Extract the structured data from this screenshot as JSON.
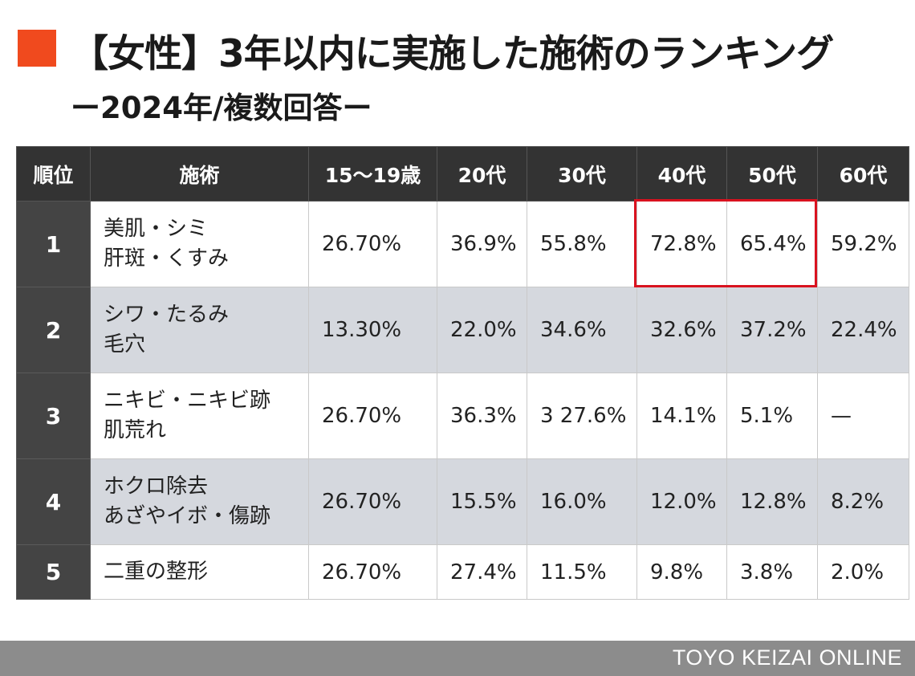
{
  "title": "【女性】3年以内に実施した施術のランキング",
  "subtitle": "ー2024年/複数回答ー",
  "chart_data": {
    "type": "table",
    "columns": [
      "順位",
      "施術",
      "15〜19歳",
      "20代",
      "30代",
      "40代",
      "50代",
      "60代"
    ],
    "rows": [
      {
        "rank": "1",
        "treatment": [
          "美肌・シミ",
          "肝斑・くすみ"
        ],
        "values": [
          "26.70%",
          "36.9%",
          "55.8%",
          "72.8%",
          "65.4%",
          "59.2%"
        ]
      },
      {
        "rank": "2",
        "treatment": [
          "シワ・たるみ",
          "毛穴"
        ],
        "values": [
          "13.30%",
          "22.0%",
          "34.6%",
          "32.6%",
          "37.2%",
          "22.4%"
        ]
      },
      {
        "rank": "3",
        "treatment": [
          "ニキビ・ニキビ跡",
          "肌荒れ"
        ],
        "values": [
          "26.70%",
          "36.3%",
          "3 27.6%",
          "14.1%",
          "5.1%",
          "—"
        ]
      },
      {
        "rank": "4",
        "treatment": [
          "ホクロ除去",
          "あざやイボ・傷跡"
        ],
        "values": [
          "26.70%",
          "15.5%",
          "16.0%",
          "12.0%",
          "12.8%",
          "8.2%"
        ]
      },
      {
        "rank": "5",
        "treatment": [
          "二重の整形"
        ],
        "values": [
          "26.70%",
          "27.4%",
          "11.5%",
          "9.8%",
          "3.8%",
          "2.0%"
        ]
      }
    ],
    "highlight_color": "#d9121f"
  },
  "colors": {
    "accent": "#f04a1e",
    "header_bg": "#333333",
    "rank_bg": "#444444",
    "alt_row_bg": "#d5d8de",
    "footer_bg": "#8c8c8c"
  },
  "footer": {
    "credit": "TOYO KEIZAI ONLINE"
  }
}
